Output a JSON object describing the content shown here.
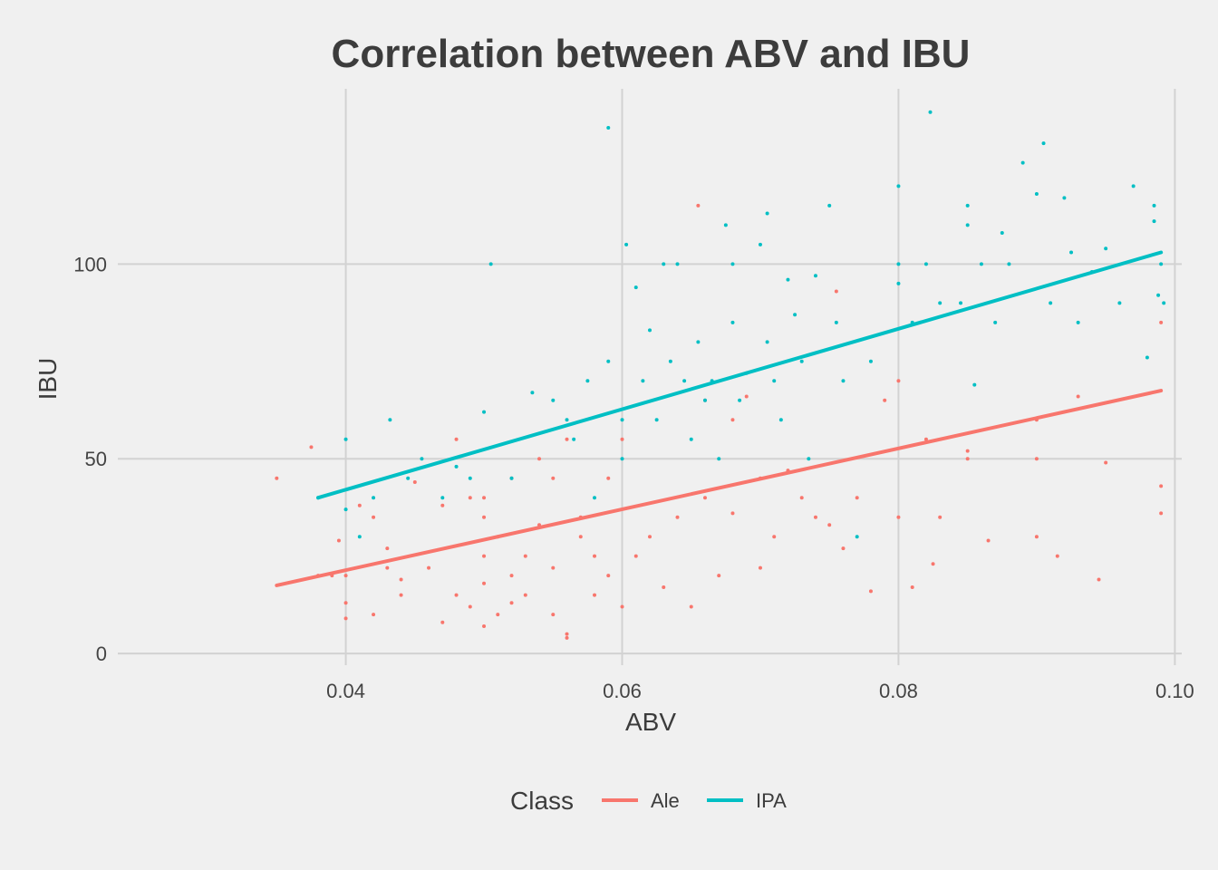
{
  "chart_data": {
    "type": "scatter",
    "title": "Correlation between ABV and IBU",
    "xlabel": "ABV",
    "ylabel": "IBU",
    "xlim": [
      0.0235,
      0.1005
    ],
    "ylim": [
      -3,
      145
    ],
    "x_ticks": [
      0.04,
      0.06,
      0.08,
      0.1
    ],
    "x_tick_labels": [
      "0.04",
      "0.06",
      "0.08",
      "0.10"
    ],
    "y_ticks": [
      0,
      50,
      100
    ],
    "y_tick_labels": [
      "0",
      "50",
      "100"
    ],
    "grid": true,
    "legend_position": "bottom",
    "legend_title": "Class",
    "series": [
      {
        "name": "Ale",
        "color": "#f8766d",
        "trend": {
          "x": [
            0.035,
            0.099
          ],
          "y": [
            17.5,
            67.5
          ]
        },
        "points": [
          [
            0.035,
            45
          ],
          [
            0.0375,
            53
          ],
          [
            0.038,
            20
          ],
          [
            0.039,
            20
          ],
          [
            0.0395,
            29
          ],
          [
            0.04,
            9
          ],
          [
            0.04,
            13
          ],
          [
            0.04,
            20
          ],
          [
            0.041,
            38
          ],
          [
            0.042,
            10
          ],
          [
            0.042,
            35
          ],
          [
            0.043,
            22
          ],
          [
            0.043,
            27
          ],
          [
            0.044,
            15
          ],
          [
            0.044,
            19
          ],
          [
            0.045,
            44
          ],
          [
            0.046,
            22
          ],
          [
            0.047,
            8
          ],
          [
            0.047,
            38
          ],
          [
            0.048,
            55
          ],
          [
            0.048,
            15
          ],
          [
            0.049,
            40
          ],
          [
            0.049,
            12
          ],
          [
            0.05,
            7
          ],
          [
            0.05,
            18
          ],
          [
            0.05,
            25
          ],
          [
            0.05,
            35
          ],
          [
            0.05,
            40
          ],
          [
            0.051,
            10
          ],
          [
            0.051,
            30
          ],
          [
            0.052,
            13
          ],
          [
            0.052,
            20
          ],
          [
            0.052,
            45
          ],
          [
            0.053,
            25
          ],
          [
            0.053,
            15
          ],
          [
            0.054,
            50
          ],
          [
            0.054,
            33
          ],
          [
            0.055,
            10
          ],
          [
            0.055,
            22
          ],
          [
            0.055,
            45
          ],
          [
            0.056,
            4
          ],
          [
            0.056,
            5
          ],
          [
            0.056,
            55
          ],
          [
            0.057,
            35
          ],
          [
            0.057,
            30
          ],
          [
            0.058,
            25
          ],
          [
            0.058,
            15
          ],
          [
            0.059,
            45
          ],
          [
            0.059,
            20
          ],
          [
            0.06,
            12
          ],
          [
            0.06,
            55
          ],
          [
            0.061,
            25
          ],
          [
            0.062,
            30
          ],
          [
            0.063,
            17
          ],
          [
            0.064,
            35
          ],
          [
            0.065,
            12
          ],
          [
            0.0655,
            115
          ],
          [
            0.066,
            40
          ],
          [
            0.066,
            65
          ],
          [
            0.067,
            20
          ],
          [
            0.068,
            36
          ],
          [
            0.068,
            60
          ],
          [
            0.069,
            66
          ],
          [
            0.07,
            22
          ],
          [
            0.07,
            45
          ],
          [
            0.071,
            30
          ],
          [
            0.072,
            47
          ],
          [
            0.073,
            40
          ],
          [
            0.074,
            35
          ],
          [
            0.075,
            33
          ],
          [
            0.0755,
            93
          ],
          [
            0.076,
            27
          ],
          [
            0.077,
            40
          ],
          [
            0.078,
            16
          ],
          [
            0.079,
            65
          ],
          [
            0.08,
            35
          ],
          [
            0.08,
            70
          ],
          [
            0.081,
            17
          ],
          [
            0.082,
            55
          ],
          [
            0.083,
            35
          ],
          [
            0.0825,
            23
          ],
          [
            0.085,
            50
          ],
          [
            0.085,
            52
          ],
          [
            0.0865,
            29
          ],
          [
            0.09,
            30
          ],
          [
            0.09,
            60
          ],
          [
            0.0915,
            25
          ],
          [
            0.093,
            66
          ],
          [
            0.0945,
            19
          ],
          [
            0.095,
            49
          ],
          [
            0.099,
            43
          ],
          [
            0.099,
            85
          ],
          [
            0.099,
            36
          ],
          [
            0.09,
            50
          ]
        ]
      },
      {
        "name": "IPA",
        "color": "#00bfc4",
        "trend": {
          "x": [
            0.038,
            0.099
          ],
          "y": [
            40,
            103
          ]
        },
        "points": [
          [
            0.038,
            40
          ],
          [
            0.04,
            55
          ],
          [
            0.04,
            37
          ],
          [
            0.041,
            30
          ],
          [
            0.042,
            40
          ],
          [
            0.0432,
            60
          ],
          [
            0.0445,
            45
          ],
          [
            0.0455,
            50
          ],
          [
            0.047,
            40
          ],
          [
            0.048,
            48
          ],
          [
            0.049,
            45
          ],
          [
            0.05,
            62
          ],
          [
            0.0505,
            100
          ],
          [
            0.052,
            45
          ],
          [
            0.0535,
            67
          ],
          [
            0.055,
            65
          ],
          [
            0.056,
            60
          ],
          [
            0.0565,
            55
          ],
          [
            0.0575,
            70
          ],
          [
            0.058,
            40
          ],
          [
            0.059,
            135
          ],
          [
            0.059,
            75
          ],
          [
            0.06,
            60
          ],
          [
            0.06,
            50
          ],
          [
            0.0603,
            105
          ],
          [
            0.061,
            94
          ],
          [
            0.0615,
            70
          ],
          [
            0.062,
            83
          ],
          [
            0.0625,
            60
          ],
          [
            0.063,
            100
          ],
          [
            0.0635,
            75
          ],
          [
            0.064,
            100
          ],
          [
            0.0645,
            70
          ],
          [
            0.065,
            55
          ],
          [
            0.0655,
            80
          ],
          [
            0.066,
            65
          ],
          [
            0.0665,
            70
          ],
          [
            0.067,
            50
          ],
          [
            0.0675,
            110
          ],
          [
            0.068,
            100
          ],
          [
            0.068,
            85
          ],
          [
            0.0685,
            65
          ],
          [
            0.069,
            72
          ],
          [
            0.07,
            105
          ],
          [
            0.0705,
            113
          ],
          [
            0.0705,
            80
          ],
          [
            0.071,
            70
          ],
          [
            0.0715,
            60
          ],
          [
            0.072,
            96
          ],
          [
            0.0725,
            87
          ],
          [
            0.073,
            75
          ],
          [
            0.0735,
            50
          ],
          [
            0.074,
            97
          ],
          [
            0.075,
            115
          ],
          [
            0.0755,
            85
          ],
          [
            0.076,
            70
          ],
          [
            0.077,
            30
          ],
          [
            0.078,
            75
          ],
          [
            0.08,
            120
          ],
          [
            0.08,
            95
          ],
          [
            0.08,
            100
          ],
          [
            0.081,
            85
          ],
          [
            0.082,
            100
          ],
          [
            0.0823,
            139
          ],
          [
            0.083,
            90
          ],
          [
            0.0845,
            90
          ],
          [
            0.085,
            115
          ],
          [
            0.085,
            110
          ],
          [
            0.0855,
            69
          ],
          [
            0.086,
            100
          ],
          [
            0.087,
            85
          ],
          [
            0.0875,
            108
          ],
          [
            0.088,
            100
          ],
          [
            0.089,
            126
          ],
          [
            0.09,
            118
          ],
          [
            0.0905,
            131
          ],
          [
            0.091,
            90
          ],
          [
            0.092,
            117
          ],
          [
            0.0925,
            103
          ],
          [
            0.093,
            85
          ],
          [
            0.094,
            98
          ],
          [
            0.095,
            104
          ],
          [
            0.096,
            90
          ],
          [
            0.097,
            120
          ],
          [
            0.098,
            76
          ],
          [
            0.0985,
            115
          ],
          [
            0.0985,
            111
          ],
          [
            0.099,
            100
          ],
          [
            0.0988,
            92
          ],
          [
            0.0992,
            90
          ]
        ]
      }
    ]
  }
}
